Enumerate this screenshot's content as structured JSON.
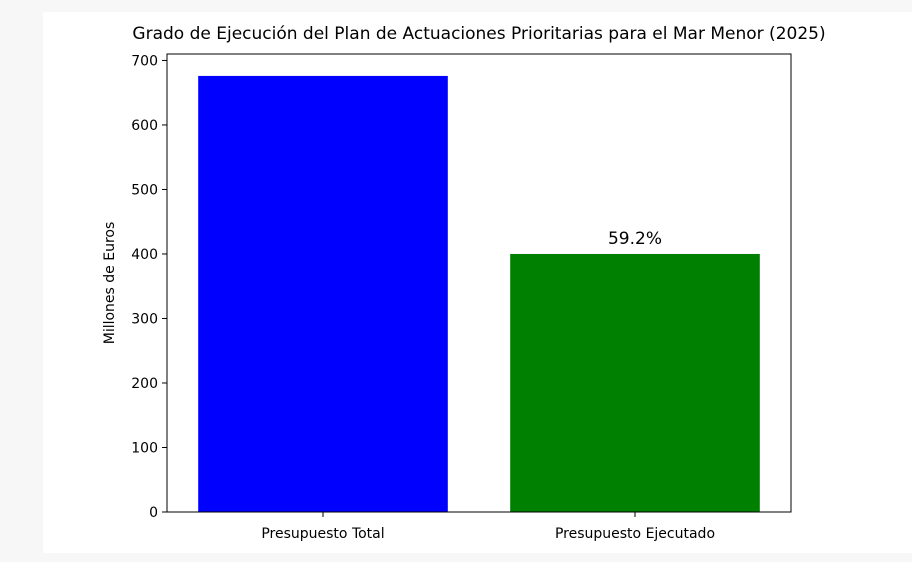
{
  "chart_data": {
    "type": "bar",
    "title": "Grado de Ejecución del Plan de Actuaciones Prioritarias para el Mar Menor (2025)",
    "xlabel": "",
    "ylabel": "Millones de Euros",
    "categories": [
      "Presupuesto Total",
      "Presupuesto Ejecutado"
    ],
    "values": [
      676,
      400
    ],
    "colors": [
      "#0000ff",
      "#008000"
    ],
    "annotations": [
      {
        "category": "Presupuesto Ejecutado",
        "text": "59.2%"
      }
    ],
    "ylim": [
      0,
      710
    ],
    "yticks": [
      0,
      100,
      200,
      300,
      400,
      500,
      600,
      700
    ],
    "grid": false,
    "legend": "none"
  }
}
